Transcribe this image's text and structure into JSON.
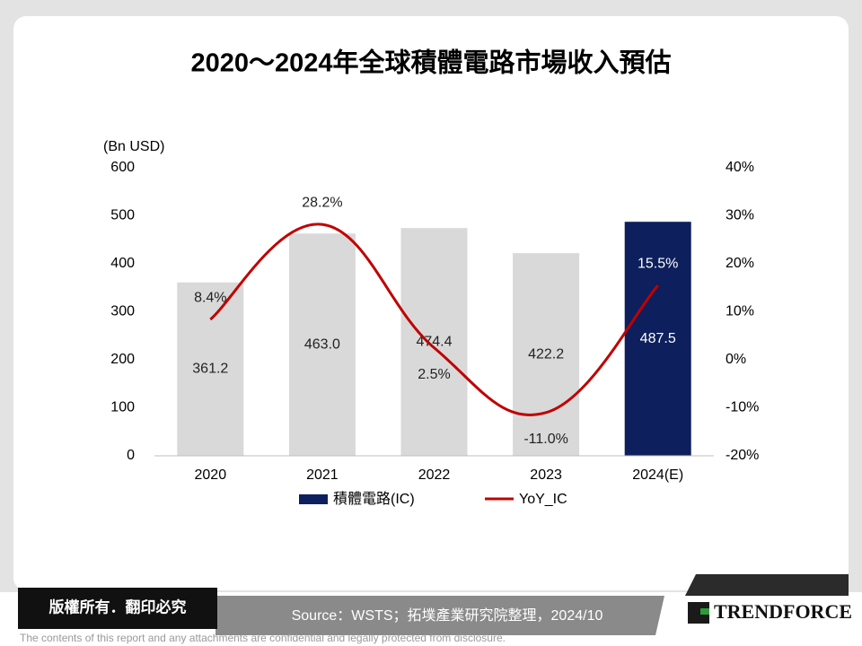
{
  "chart_data": {
    "type": "bar-line",
    "title": "2020～2024年全球積體電路市場收入預估",
    "y_label": "(Bn USD)",
    "categories": [
      "2020",
      "2021",
      "2022",
      "2023",
      "2024(E)"
    ],
    "series": [
      {
        "name": "積體電路(IC)",
        "type": "bar",
        "color": "#0d1f5c",
        "colors": [
          "#d9d9d9",
          "#d9d9d9",
          "#d9d9d9",
          "#d9d9d9",
          "#0d1f5c"
        ],
        "values": [
          361.2,
          463.0,
          474.4,
          422.2,
          487.5
        ],
        "value_labels": [
          "361.2",
          "463.0",
          "474.4",
          "422.2",
          "487.5"
        ]
      },
      {
        "name": "YoY_IC",
        "type": "line",
        "axis": "y2",
        "color": "#c00000",
        "values": [
          8.4,
          28.2,
          2.5,
          -11.0,
          15.5
        ],
        "value_labels": [
          "8.4%",
          "28.2%",
          "2.5%",
          "-11.0%",
          "15.5%"
        ]
      }
    ],
    "ylim": [
      0,
      600
    ],
    "yticks": [
      0,
      100,
      200,
      300,
      400,
      500,
      600
    ],
    "y2lim": [
      -20,
      40
    ],
    "y2ticks": [
      {
        "value": -20,
        "label": "-20%"
      },
      {
        "value": -10,
        "label": "-10%"
      },
      {
        "value": 0,
        "label": "0%"
      },
      {
        "value": 10,
        "label": "10%"
      },
      {
        "value": 20,
        "label": "20%"
      },
      {
        "value": 30,
        "label": "30%"
      },
      {
        "value": 40,
        "label": "40%"
      }
    ],
    "legend": "bottom"
  },
  "footer": {
    "rights": "版權所有．翻印必究",
    "source": "Source：WSTS；拓墣產業研究院整理，2024/10",
    "brand": "TRENDFORCE",
    "disclaimer": "The contents of this report and any attachments are confidential and legally protected from disclosure."
  }
}
